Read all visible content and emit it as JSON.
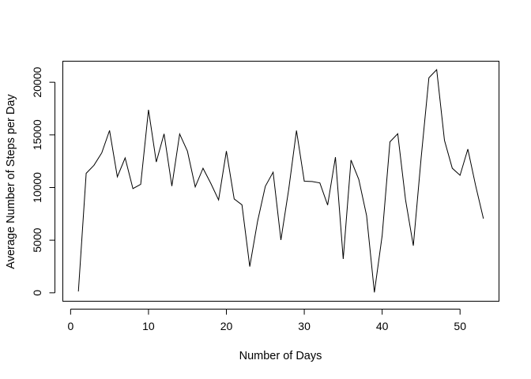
{
  "chart_data": {
    "type": "line",
    "title": "",
    "xlabel": "Number of Days",
    "ylabel": "Average Number of Steps per Day",
    "xlim": [
      -1,
      55
    ],
    "ylim": [
      -800,
      22000
    ],
    "x_ticks": [
      0,
      10,
      20,
      30,
      40,
      50
    ],
    "x_tick_labels": [
      "0",
      "10",
      "20",
      "30",
      "40",
      "50"
    ],
    "y_ticks": [
      0,
      5000,
      10000,
      15000,
      20000
    ],
    "y_tick_labels": [
      "0",
      "5000",
      "10000",
      "15000",
      "20000"
    ],
    "grid": false,
    "legend": "none",
    "color": "#000000",
    "series": [
      {
        "x": [
          1,
          2,
          3,
          4,
          5,
          6,
          7,
          8,
          9,
          10,
          11,
          12,
          13,
          14,
          15,
          16,
          17,
          18,
          19,
          20,
          21,
          22,
          23,
          24,
          25,
          26,
          27,
          28,
          29,
          30,
          31,
          32,
          33,
          34,
          35,
          36,
          37,
          38,
          39,
          40,
          41,
          42,
          43,
          44,
          45,
          46,
          47,
          48,
          49,
          50,
          51,
          52,
          53
        ],
        "values": [
          126,
          11352,
          12116,
          13294,
          15420,
          11015,
          12811,
          9900,
          10304,
          17382,
          12426,
          15098,
          10139,
          15084,
          13452,
          10056,
          11829,
          10395,
          8821,
          13460,
          8918,
          8355,
          2492,
          6778,
          10119,
          11458,
          5018,
          9819,
          15414,
          10600,
          10571,
          10439,
          8334,
          12883,
          3219,
          12608,
          10765,
          7336,
          41,
          5441,
          14339,
          15110,
          8841,
          4472,
          12787,
          20427,
          21194,
          14478,
          11834,
          11162,
          13646,
          10183,
          7047
        ]
      }
    ]
  }
}
